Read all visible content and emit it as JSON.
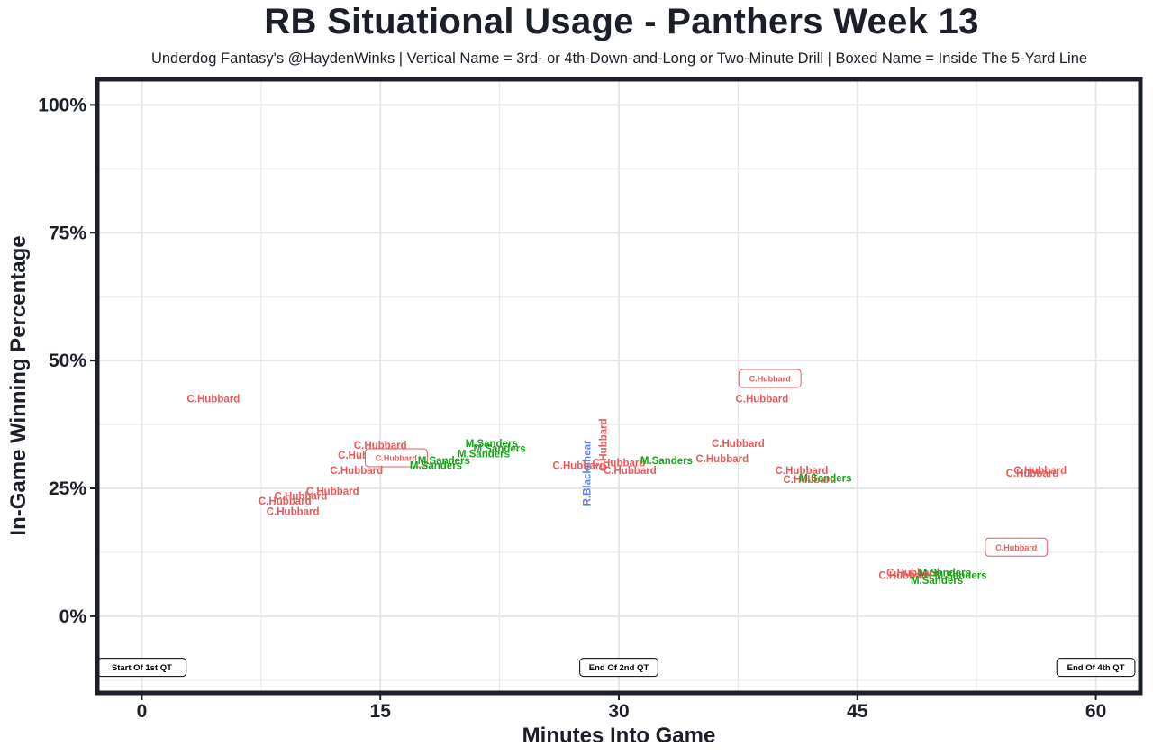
{
  "title": "RB Situational Usage - Panthers Week 13",
  "subtitle": "Underdog Fantasy's @HaydenWinks | Vertical Name = 3rd- or 4th-Down-and-Long or Two-Minute Drill | Boxed Name = Inside The 5-Yard Line",
  "colors": {
    "C.Hubbard": "#e8595a",
    "M.Sanders": "#1aa31a",
    "R.Blackshear": "#5b84ee",
    "frame": "#1b1f2a",
    "grid": "#e6e6e6"
  },
  "chart_data": {
    "type": "scatter",
    "xlabel": "Minutes Into Game",
    "ylabel": "In-Game Winning Percentage",
    "xlim": [
      -2.8,
      62.8
    ],
    "ylim": [
      -15,
      105
    ],
    "x_ticks": [
      {
        "value": 0,
        "label": "0"
      },
      {
        "value": 15,
        "label": "15"
      },
      {
        "value": 30,
        "label": "30"
      },
      {
        "value": 45,
        "label": "45"
      },
      {
        "value": 60,
        "label": "60"
      }
    ],
    "y_ticks": [
      {
        "value": 0,
        "label": "0%"
      },
      {
        "value": 25,
        "label": "25%"
      },
      {
        "value": 50,
        "label": "50%"
      },
      {
        "value": 75,
        "label": "75%"
      },
      {
        "value": 100,
        "label": "100%"
      }
    ],
    "grid": true,
    "points": [
      {
        "player": "C.Hubbard",
        "x": 4.5,
        "y": 42.5,
        "vertical": false,
        "boxed": false
      },
      {
        "player": "C.Hubbard",
        "x": 15.0,
        "y": 33.5,
        "vertical": false,
        "boxed": false
      },
      {
        "player": "C.Hubbard",
        "x": 14.0,
        "y": 31.5,
        "vertical": false,
        "boxed": false
      },
      {
        "player": "C.Hubbard",
        "x": 16.0,
        "y": 31.0,
        "vertical": false,
        "boxed": true
      },
      {
        "player": "C.Hubbard",
        "x": 13.5,
        "y": 28.5,
        "vertical": false,
        "boxed": false
      },
      {
        "player": "C.Hubbard",
        "x": 12.0,
        "y": 24.5,
        "vertical": false,
        "boxed": false
      },
      {
        "player": "C.Hubbard",
        "x": 10.0,
        "y": 23.5,
        "vertical": false,
        "boxed": false
      },
      {
        "player": "C.Hubbard",
        "x": 9.0,
        "y": 22.5,
        "vertical": false,
        "boxed": false
      },
      {
        "player": "C.Hubbard",
        "x": 9.5,
        "y": 20.5,
        "vertical": false,
        "boxed": false
      },
      {
        "player": "M.Sanders",
        "x": 22.0,
        "y": 33.8,
        "vertical": false,
        "boxed": false
      },
      {
        "player": "M.Sanders",
        "x": 22.5,
        "y": 32.8,
        "vertical": false,
        "boxed": false
      },
      {
        "player": "M.Sanders",
        "x": 21.5,
        "y": 31.8,
        "vertical": false,
        "boxed": false
      },
      {
        "player": "M.Sanders",
        "x": 19.0,
        "y": 30.5,
        "vertical": false,
        "boxed": false
      },
      {
        "player": "M.Sanders",
        "x": 18.5,
        "y": 29.5,
        "vertical": false,
        "boxed": false
      },
      {
        "player": "R.Blackshear",
        "x": 28.0,
        "y": 28.0,
        "vertical": true,
        "boxed": false
      },
      {
        "player": "C.Hubbard",
        "x": 29.0,
        "y": 33.5,
        "vertical": true,
        "boxed": false
      },
      {
        "player": "C.Hubbard",
        "x": 27.5,
        "y": 29.5,
        "vertical": false,
        "boxed": false
      },
      {
        "player": "C.Hubbard",
        "x": 30.0,
        "y": 30.0,
        "vertical": false,
        "boxed": false
      },
      {
        "player": "C.Hubbard",
        "x": 30.7,
        "y": 28.5,
        "vertical": false,
        "boxed": false
      },
      {
        "player": "M.Sanders",
        "x": 33.0,
        "y": 30.5,
        "vertical": false,
        "boxed": false
      },
      {
        "player": "C.Hubbard",
        "x": 36.5,
        "y": 30.8,
        "vertical": false,
        "boxed": false
      },
      {
        "player": "C.Hubbard",
        "x": 37.5,
        "y": 33.8,
        "vertical": false,
        "boxed": false
      },
      {
        "player": "C.Hubbard",
        "x": 39.0,
        "y": 42.5,
        "vertical": false,
        "boxed": false
      },
      {
        "player": "C.Hubbard",
        "x": 39.5,
        "y": 46.5,
        "vertical": false,
        "boxed": true
      },
      {
        "player": "C.Hubbard",
        "x": 41.5,
        "y": 28.5,
        "vertical": false,
        "boxed": false
      },
      {
        "player": "C.Hubbard",
        "x": 42.0,
        "y": 26.8,
        "vertical": false,
        "boxed": false
      },
      {
        "player": "M.Sanders",
        "x": 43.0,
        "y": 27.0,
        "vertical": false,
        "boxed": false
      },
      {
        "player": "C.Hubbard",
        "x": 48.5,
        "y": 8.5,
        "vertical": false,
        "boxed": false
      },
      {
        "player": "C.Hubbard",
        "x": 48.0,
        "y": 8.0,
        "vertical": false,
        "boxed": false
      },
      {
        "player": "M.Sanders",
        "x": 50.5,
        "y": 8.5,
        "vertical": false,
        "boxed": false
      },
      {
        "player": "M.Sanders",
        "x": 51.5,
        "y": 8.0,
        "vertical": false,
        "boxed": false
      },
      {
        "player": "M.Sanders",
        "x": 50.0,
        "y": 7.0,
        "vertical": false,
        "boxed": false
      },
      {
        "player": "C.Hubbard",
        "x": 56.5,
        "y": 28.5,
        "vertical": false,
        "boxed": false
      },
      {
        "player": "C.Hubbard",
        "x": 56.0,
        "y": 28.0,
        "vertical": false,
        "boxed": false
      },
      {
        "player": "C.Hubbard",
        "x": 55.0,
        "y": 13.5,
        "vertical": false,
        "boxed": true
      }
    ],
    "quarter_markers": [
      {
        "label": "Start Of 1st QT",
        "x": 0,
        "y": -10
      },
      {
        "label": "End Of 2nd QT",
        "x": 30,
        "y": -10
      },
      {
        "label": "End Of 4th QT",
        "x": 60,
        "y": -10
      }
    ]
  }
}
